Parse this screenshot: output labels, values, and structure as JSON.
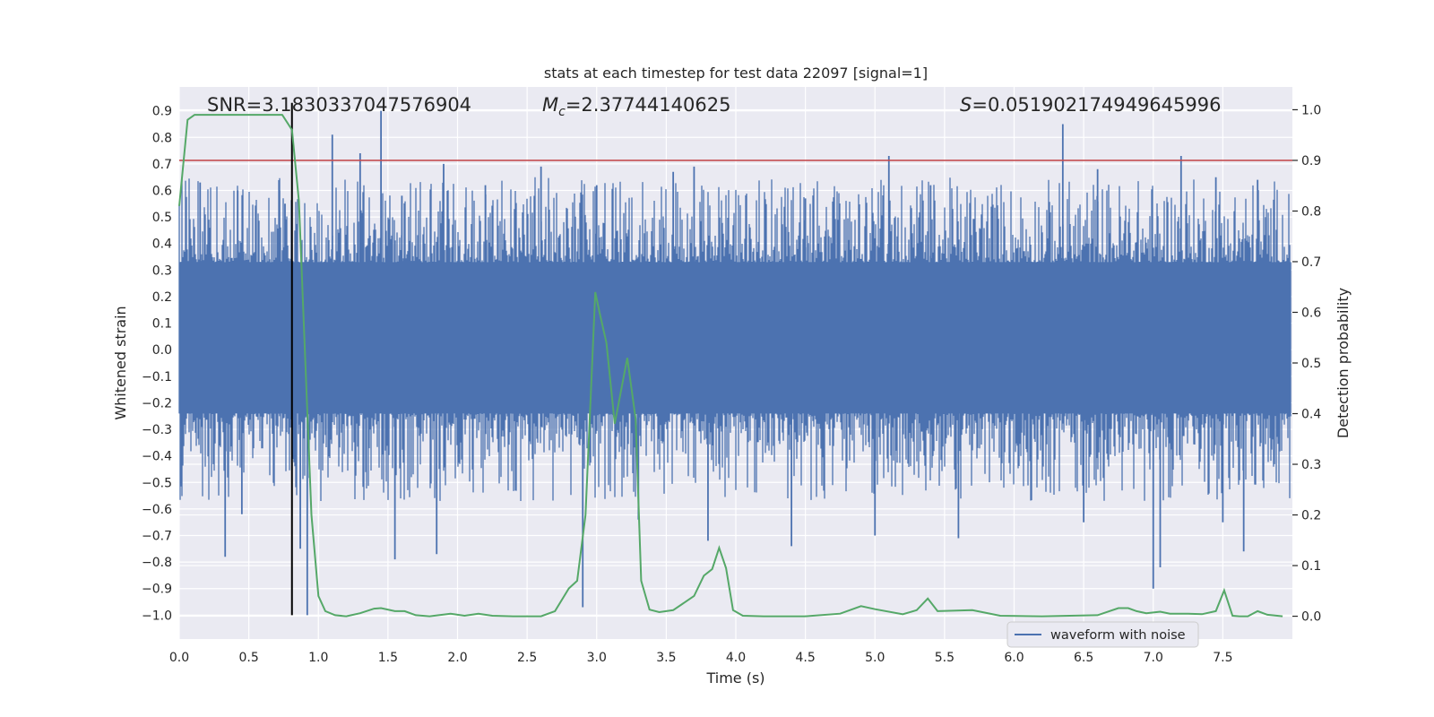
{
  "chart_data": {
    "type": "line",
    "title": "stats at each timestep for test data 22097 [signal=1]",
    "xlabel": "Time (s)",
    "ylabel": "Whitened strain",
    "ylabel_right": "Detection probability",
    "xlim": [
      0.0,
      8.0
    ],
    "ylim": [
      -1.09,
      0.99
    ],
    "ylim_right": [
      -0.045,
      1.045
    ],
    "xticks": [
      "0.0",
      "0.5",
      "1.0",
      "1.5",
      "2.0",
      "2.5",
      "3.0",
      "3.5",
      "4.0",
      "4.5",
      "5.0",
      "5.5",
      "6.0",
      "6.5",
      "7.0",
      "7.5"
    ],
    "yticks": [
      "-1.0",
      "-0.9",
      "-0.8",
      "-0.7",
      "-0.6",
      "-0.5",
      "-0.4",
      "-0.3",
      "-0.2",
      "-0.1",
      "0.0",
      "0.1",
      "0.2",
      "0.3",
      "0.4",
      "0.5",
      "0.6",
      "0.7",
      "0.8",
      "0.9"
    ],
    "yticks_right": [
      "0.0",
      "0.1",
      "0.2",
      "0.3",
      "0.4",
      "0.5",
      "0.6",
      "0.7",
      "0.8",
      "0.9",
      "1.0"
    ],
    "annotations": {
      "snr": "SNR=3.1830337047576904",
      "mc_symbol": "M",
      "mc_sub": "c",
      "mc_value": "=2.37744140625",
      "s_symbol": "S",
      "s_value": "=0.051902174949645996"
    },
    "threshold_right": 0.9,
    "event_time": 0.81,
    "legend": {
      "label": "waveform with noise",
      "location": "lower-right"
    },
    "colors": {
      "waveform": "#4c72b0",
      "probability": "#55a868",
      "threshold": "#c44e52",
      "marker": "#000000",
      "axes_bg": "#eaeaf2",
      "grid": "#ffffff"
    },
    "series": [
      {
        "name": "waveform with noise",
        "axis": "left",
        "core_band": [
          -0.24,
          0.33
        ],
        "peaks_up": [
          [
            0.15,
            0.63
          ],
          [
            0.42,
            0.6
          ],
          [
            0.55,
            0.53
          ],
          [
            0.72,
            0.6
          ],
          [
            0.76,
            0.55
          ],
          [
            1.1,
            0.81
          ],
          [
            1.3,
            0.74
          ],
          [
            1.45,
            0.9
          ],
          [
            1.6,
            0.58
          ],
          [
            1.9,
            0.7
          ],
          [
            2.2,
            0.62
          ],
          [
            2.6,
            0.69
          ],
          [
            3.0,
            0.62
          ],
          [
            3.55,
            0.67
          ],
          [
            3.7,
            0.69
          ],
          [
            4.5,
            0.57
          ],
          [
            5.1,
            0.73
          ],
          [
            5.4,
            0.62
          ],
          [
            6.35,
            0.85
          ],
          [
            6.6,
            0.68
          ],
          [
            7.2,
            0.73
          ],
          [
            7.45,
            0.65
          ],
          [
            7.75,
            0.64
          ]
        ],
        "peaks_down": [
          [
            0.33,
            -0.78
          ],
          [
            0.45,
            -0.62
          ],
          [
            0.87,
            -0.75
          ],
          [
            0.92,
            -1.0
          ],
          [
            1.55,
            -0.79
          ],
          [
            1.85,
            -0.77
          ],
          [
            2.9,
            -0.97
          ],
          [
            3.3,
            -0.64
          ],
          [
            3.8,
            -0.72
          ],
          [
            4.4,
            -0.74
          ],
          [
            5.0,
            -0.7
          ],
          [
            5.6,
            -0.71
          ],
          [
            6.5,
            -0.65
          ],
          [
            7.0,
            -0.9
          ],
          [
            7.05,
            -0.82
          ],
          [
            7.5,
            -0.65
          ],
          [
            7.65,
            -0.76
          ]
        ]
      },
      {
        "name": "detection probability",
        "axis": "right",
        "x": [
          0.0,
          0.06,
          0.11,
          0.2,
          0.5,
          0.74,
          0.81,
          0.86,
          0.95,
          1.0,
          1.05,
          1.12,
          1.2,
          1.3,
          1.4,
          1.45,
          1.55,
          1.62,
          1.7,
          1.8,
          1.95,
          2.05,
          2.15,
          2.25,
          2.4,
          2.6,
          2.7,
          2.8,
          2.86,
          2.92,
          2.99,
          3.02,
          3.07,
          3.13,
          3.22,
          3.28,
          3.32,
          3.38,
          3.45,
          3.55,
          3.7,
          3.77,
          3.83,
          3.88,
          3.93,
          3.98,
          4.05,
          4.2,
          4.5,
          4.75,
          4.9,
          5.0,
          5.2,
          5.3,
          5.38,
          5.45,
          5.7,
          5.9,
          6.2,
          6.6,
          6.75,
          6.82,
          6.88,
          6.95,
          7.05,
          7.12,
          7.25,
          7.35,
          7.45,
          7.51,
          7.57,
          7.62,
          7.68,
          7.75,
          7.82,
          7.93
        ],
        "values": [
          0.81,
          0.98,
          0.99,
          0.99,
          0.99,
          0.99,
          0.96,
          0.82,
          0.2,
          0.04,
          0.01,
          0.002,
          0.0,
          0.006,
          0.015,
          0.016,
          0.01,
          0.01,
          0.002,
          0.0,
          0.005,
          0.001,
          0.005,
          0.001,
          0.0,
          0.0,
          0.01,
          0.055,
          0.07,
          0.2,
          0.64,
          0.6,
          0.54,
          0.38,
          0.51,
          0.39,
          0.07,
          0.013,
          0.008,
          0.012,
          0.04,
          0.08,
          0.093,
          0.135,
          0.095,
          0.012,
          0.001,
          0.0,
          0.0,
          0.005,
          0.02,
          0.014,
          0.004,
          0.012,
          0.035,
          0.01,
          0.012,
          0.001,
          0.0,
          0.002,
          0.016,
          0.016,
          0.01,
          0.006,
          0.009,
          0.005,
          0.005,
          0.004,
          0.01,
          0.051,
          0.001,
          0.0,
          0.0,
          0.01,
          0.003,
          0.0
        ]
      }
    ]
  }
}
